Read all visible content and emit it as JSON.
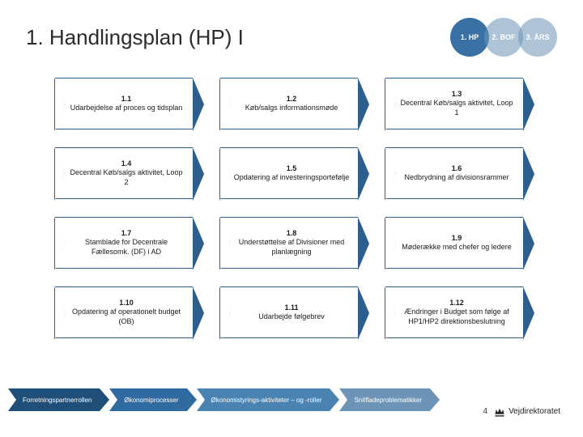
{
  "title": "1. Handlingsplan (HP) I",
  "phases": [
    {
      "label": "1. HP",
      "bg": "#2f6aa0",
      "opacity": 0.95
    },
    {
      "label": "2. BOF",
      "bg": "#6d94b6",
      "opacity": 0.55
    },
    {
      "label": "3. ÅRS",
      "bg": "#6d94b6",
      "opacity": 0.55
    }
  ],
  "step_border_color": "#2d5e8e",
  "steps": [
    {
      "num": "1.1",
      "text": "Udarbejdelse af proces og tidsplan"
    },
    {
      "num": "1.2",
      "text": "Køb/salgs informationsmøde"
    },
    {
      "num": "1.3",
      "text": "Decentral Køb/salgs aktivitet, Loop 1"
    },
    {
      "num": "1.4",
      "text": "Decentral Køb/salgs aktivitet, Loop 2"
    },
    {
      "num": "1.5",
      "text": "Opdatering af investeringsportefølje"
    },
    {
      "num": "1.6",
      "text": "Nedbrydning af divisionsrammer"
    },
    {
      "num": "1.7",
      "text": "Stamblade for Decentrale Fællesomk. (DF) i AD"
    },
    {
      "num": "1.8",
      "text": "Understøttelse af Divisioner med planlægning"
    },
    {
      "num": "1.9",
      "text": "Møderække med chefer og ledere"
    },
    {
      "num": "1.10",
      "text": "Opdatering af operationelt budget (OB)"
    },
    {
      "num": "1.11",
      "text": "Udarbejde følgebrev"
    },
    {
      "num": "1.12",
      "text": "Ændringer i Budget som følge af HP1/HP2 direktionsbeslutning"
    }
  ],
  "chevrons": [
    {
      "label": "Forretningspartnerrollen",
      "bg": "#1f4e79"
    },
    {
      "label": "Økonomiprocesser",
      "bg": "#2f6aa0"
    },
    {
      "label": "Økonomistyrings-aktiviteter – og -roller",
      "bg": "#4a82b2"
    },
    {
      "label": "Snitfladeproblematikker",
      "bg": "#6d94b6"
    }
  ],
  "page_number": "4",
  "org": "Vejdirektoratet"
}
